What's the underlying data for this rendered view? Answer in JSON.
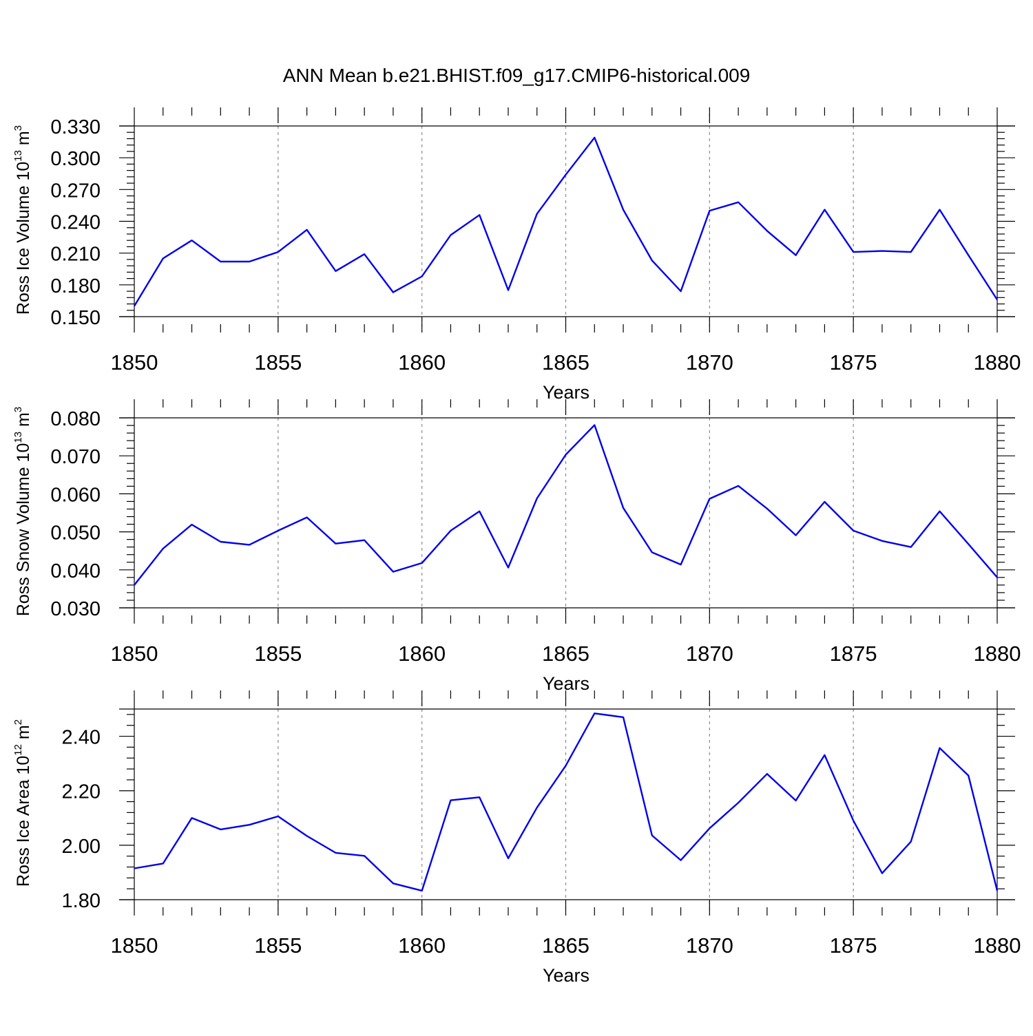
{
  "title": "ANN Mean b.e21.BHIST.f09_g17.CMIP6-historical.009",
  "chart_data": [
    {
      "type": "line",
      "ylabel": {
        "base": "Ross Ice Volume 10",
        "exp": "13",
        "unit": " m",
        "unit_exp": "3"
      },
      "xlabel": "Years",
      "xlim": [
        1850,
        1880
      ],
      "ylim": [
        0.15,
        0.33
      ],
      "yticks": [
        0.15,
        0.18,
        0.21,
        0.24,
        0.27,
        0.3,
        0.33
      ],
      "ytick_labels": [
        "0.150",
        "0.180",
        "0.210",
        "0.240",
        "0.270",
        "0.300",
        "0.330"
      ],
      "y_minor_step": 0.006,
      "y_top_frame": 0.33,
      "xticks": [
        1850,
        1855,
        1860,
        1865,
        1870,
        1875,
        1880
      ],
      "xtick_labels": [
        "1850",
        "1855",
        "1860",
        "1865",
        "1870",
        "1875",
        "1880"
      ],
      "grid": "x-major dashed",
      "line_color": "#0000ee",
      "x": [
        1850,
        1851,
        1852,
        1853,
        1854,
        1855,
        1856,
        1857,
        1858,
        1859,
        1860,
        1861,
        1862,
        1863,
        1864,
        1865,
        1866,
        1867,
        1868,
        1869,
        1870,
        1871,
        1872,
        1873,
        1874,
        1875,
        1876,
        1877,
        1878,
        1879,
        1880
      ],
      "values": [
        0.16,
        0.205,
        0.222,
        0.202,
        0.202,
        0.211,
        0.232,
        0.193,
        0.209,
        0.173,
        0.188,
        0.227,
        0.246,
        0.175,
        0.247,
        0.284,
        0.319,
        0.251,
        0.203,
        0.174,
        0.25,
        0.258,
        0.231,
        0.208,
        0.251,
        0.211,
        0.212,
        0.211,
        0.251,
        0.208,
        0.166
      ]
    },
    {
      "type": "line",
      "ylabel": {
        "base": "Ross Snow Volume 10",
        "exp": "13",
        "unit": " m",
        "unit_exp": "3"
      },
      "xlabel": "Years",
      "xlim": [
        1850,
        1880
      ],
      "ylim": [
        0.03,
        0.08
      ],
      "yticks": [
        0.03,
        0.04,
        0.05,
        0.06,
        0.07,
        0.08
      ],
      "ytick_labels": [
        "0.030",
        "0.040",
        "0.050",
        "0.060",
        "0.070",
        "0.080"
      ],
      "y_minor_step": 0.002,
      "y_top_frame": 0.08,
      "xticks": [
        1850,
        1855,
        1860,
        1865,
        1870,
        1875,
        1880
      ],
      "xtick_labels": [
        "1850",
        "1855",
        "1860",
        "1865",
        "1870",
        "1875",
        "1880"
      ],
      "grid": "x-major dashed",
      "line_color": "#0000ee",
      "x": [
        1850,
        1851,
        1852,
        1853,
        1854,
        1855,
        1856,
        1857,
        1858,
        1859,
        1860,
        1861,
        1862,
        1863,
        1864,
        1865,
        1866,
        1867,
        1868,
        1869,
        1870,
        1871,
        1872,
        1873,
        1874,
        1875,
        1876,
        1877,
        1878,
        1879,
        1880
      ],
      "values": [
        0.036,
        0.0456,
        0.0519,
        0.0474,
        0.0466,
        0.0503,
        0.0538,
        0.0469,
        0.0478,
        0.0395,
        0.0418,
        0.0503,
        0.0554,
        0.0406,
        0.0588,
        0.0703,
        0.0781,
        0.0563,
        0.0446,
        0.0414,
        0.0587,
        0.0621,
        0.0561,
        0.0491,
        0.0579,
        0.0503,
        0.0476,
        0.046,
        0.0554,
        0.0468,
        0.038
      ]
    },
    {
      "type": "line",
      "ylabel": {
        "base": "Ross Ice Area 10",
        "exp": "12",
        "unit": " m",
        "unit_exp": "2"
      },
      "xlabel": "Years",
      "xlim": [
        1850,
        1880
      ],
      "ylim": [
        1.8,
        2.5
      ],
      "yticks": [
        1.8,
        2.0,
        2.2,
        2.4
      ],
      "ytick_labels": [
        "1.80",
        "2.00",
        "2.20",
        "2.40"
      ],
      "y_minor_step": 0.04,
      "y_top_frame": 2.5,
      "xticks": [
        1850,
        1855,
        1860,
        1865,
        1870,
        1875,
        1880
      ],
      "xtick_labels": [
        "1850",
        "1855",
        "1860",
        "1865",
        "1870",
        "1875",
        "1880"
      ],
      "grid": "x-major dashed",
      "line_color": "#0000ee",
      "x": [
        1850,
        1851,
        1852,
        1853,
        1854,
        1855,
        1856,
        1857,
        1858,
        1859,
        1860,
        1861,
        1862,
        1863,
        1864,
        1865,
        1866,
        1867,
        1868,
        1869,
        1870,
        1871,
        1872,
        1873,
        1874,
        1875,
        1876,
        1877,
        1878,
        1879,
        1880
      ],
      "values": [
        1.915,
        1.933,
        2.1,
        2.058,
        2.075,
        2.106,
        2.034,
        1.972,
        1.961,
        1.86,
        1.833,
        2.165,
        2.176,
        1.952,
        2.138,
        2.292,
        2.484,
        2.47,
        2.036,
        1.945,
        2.062,
        2.156,
        2.262,
        2.164,
        2.331,
        2.09,
        1.897,
        2.013,
        2.357,
        2.256,
        1.833
      ]
    }
  ]
}
